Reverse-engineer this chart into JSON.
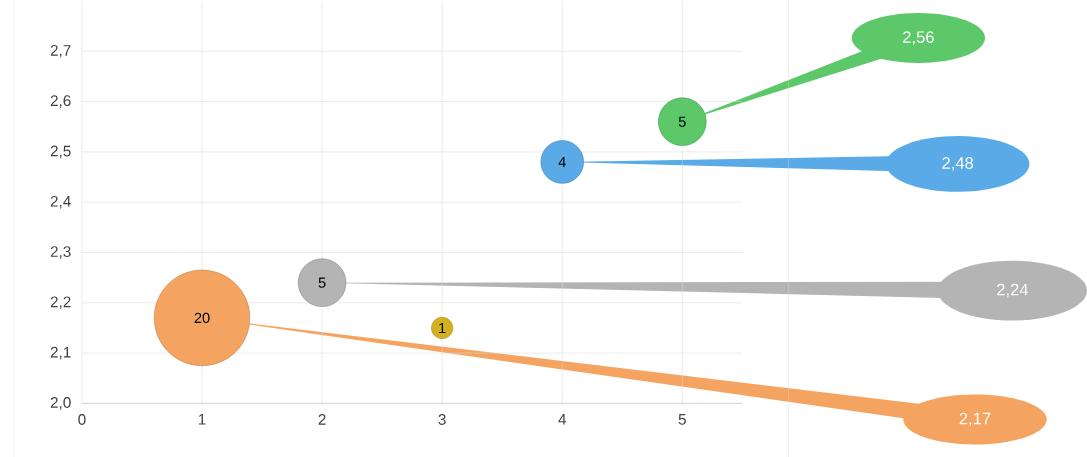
{
  "chart_data": {
    "type": "bubble",
    "x": [
      1,
      2,
      3,
      4,
      5
    ],
    "values": [
      2.17,
      2.24,
      2.15,
      2.48,
      2.56
    ],
    "sizes": [
      1,
      0.25,
      0.05,
      0.2,
      0.25
    ],
    "annotations": [
      {
        "text": "20",
        "x": 1,
        "y": 2.17
      },
      {
        "text": "5",
        "x": 2,
        "y": 2.24
      },
      {
        "text": "1",
        "x": 3,
        "y": 2.15
      },
      {
        "text": "4",
        "x": 4,
        "y": 2.48
      },
      {
        "text": "5",
        "x": 5,
        "y": 2.56
      }
    ],
    "colors": [
      "#f4a460",
      "#b4b4b4",
      "#d4b020",
      "#5aaae8",
      "#5cc86a"
    ],
    "value_labels": [
      "2,17",
      "2,24",
      null,
      "2,48",
      "2,56"
    ],
    "xlim": [
      0,
      5.5
    ],
    "xticks": [
      0,
      1,
      2,
      3,
      4,
      5
    ],
    "ylim": [
      2.0,
      2.8
    ],
    "yticks": [
      {
        "value": 2.0,
        "label": "2,0"
      },
      {
        "value": 2.1,
        "label": "2,1"
      },
      {
        "value": 2.2,
        "label": "2,2"
      },
      {
        "value": 2.3,
        "label": "2,3"
      },
      {
        "value": 2.4,
        "label": "2,4"
      },
      {
        "value": 2.5,
        "label": "2,5"
      },
      {
        "value": 2.6,
        "label": "2,6"
      },
      {
        "value": 2.7,
        "label": "2,7"
      }
    ],
    "grid": true
  }
}
